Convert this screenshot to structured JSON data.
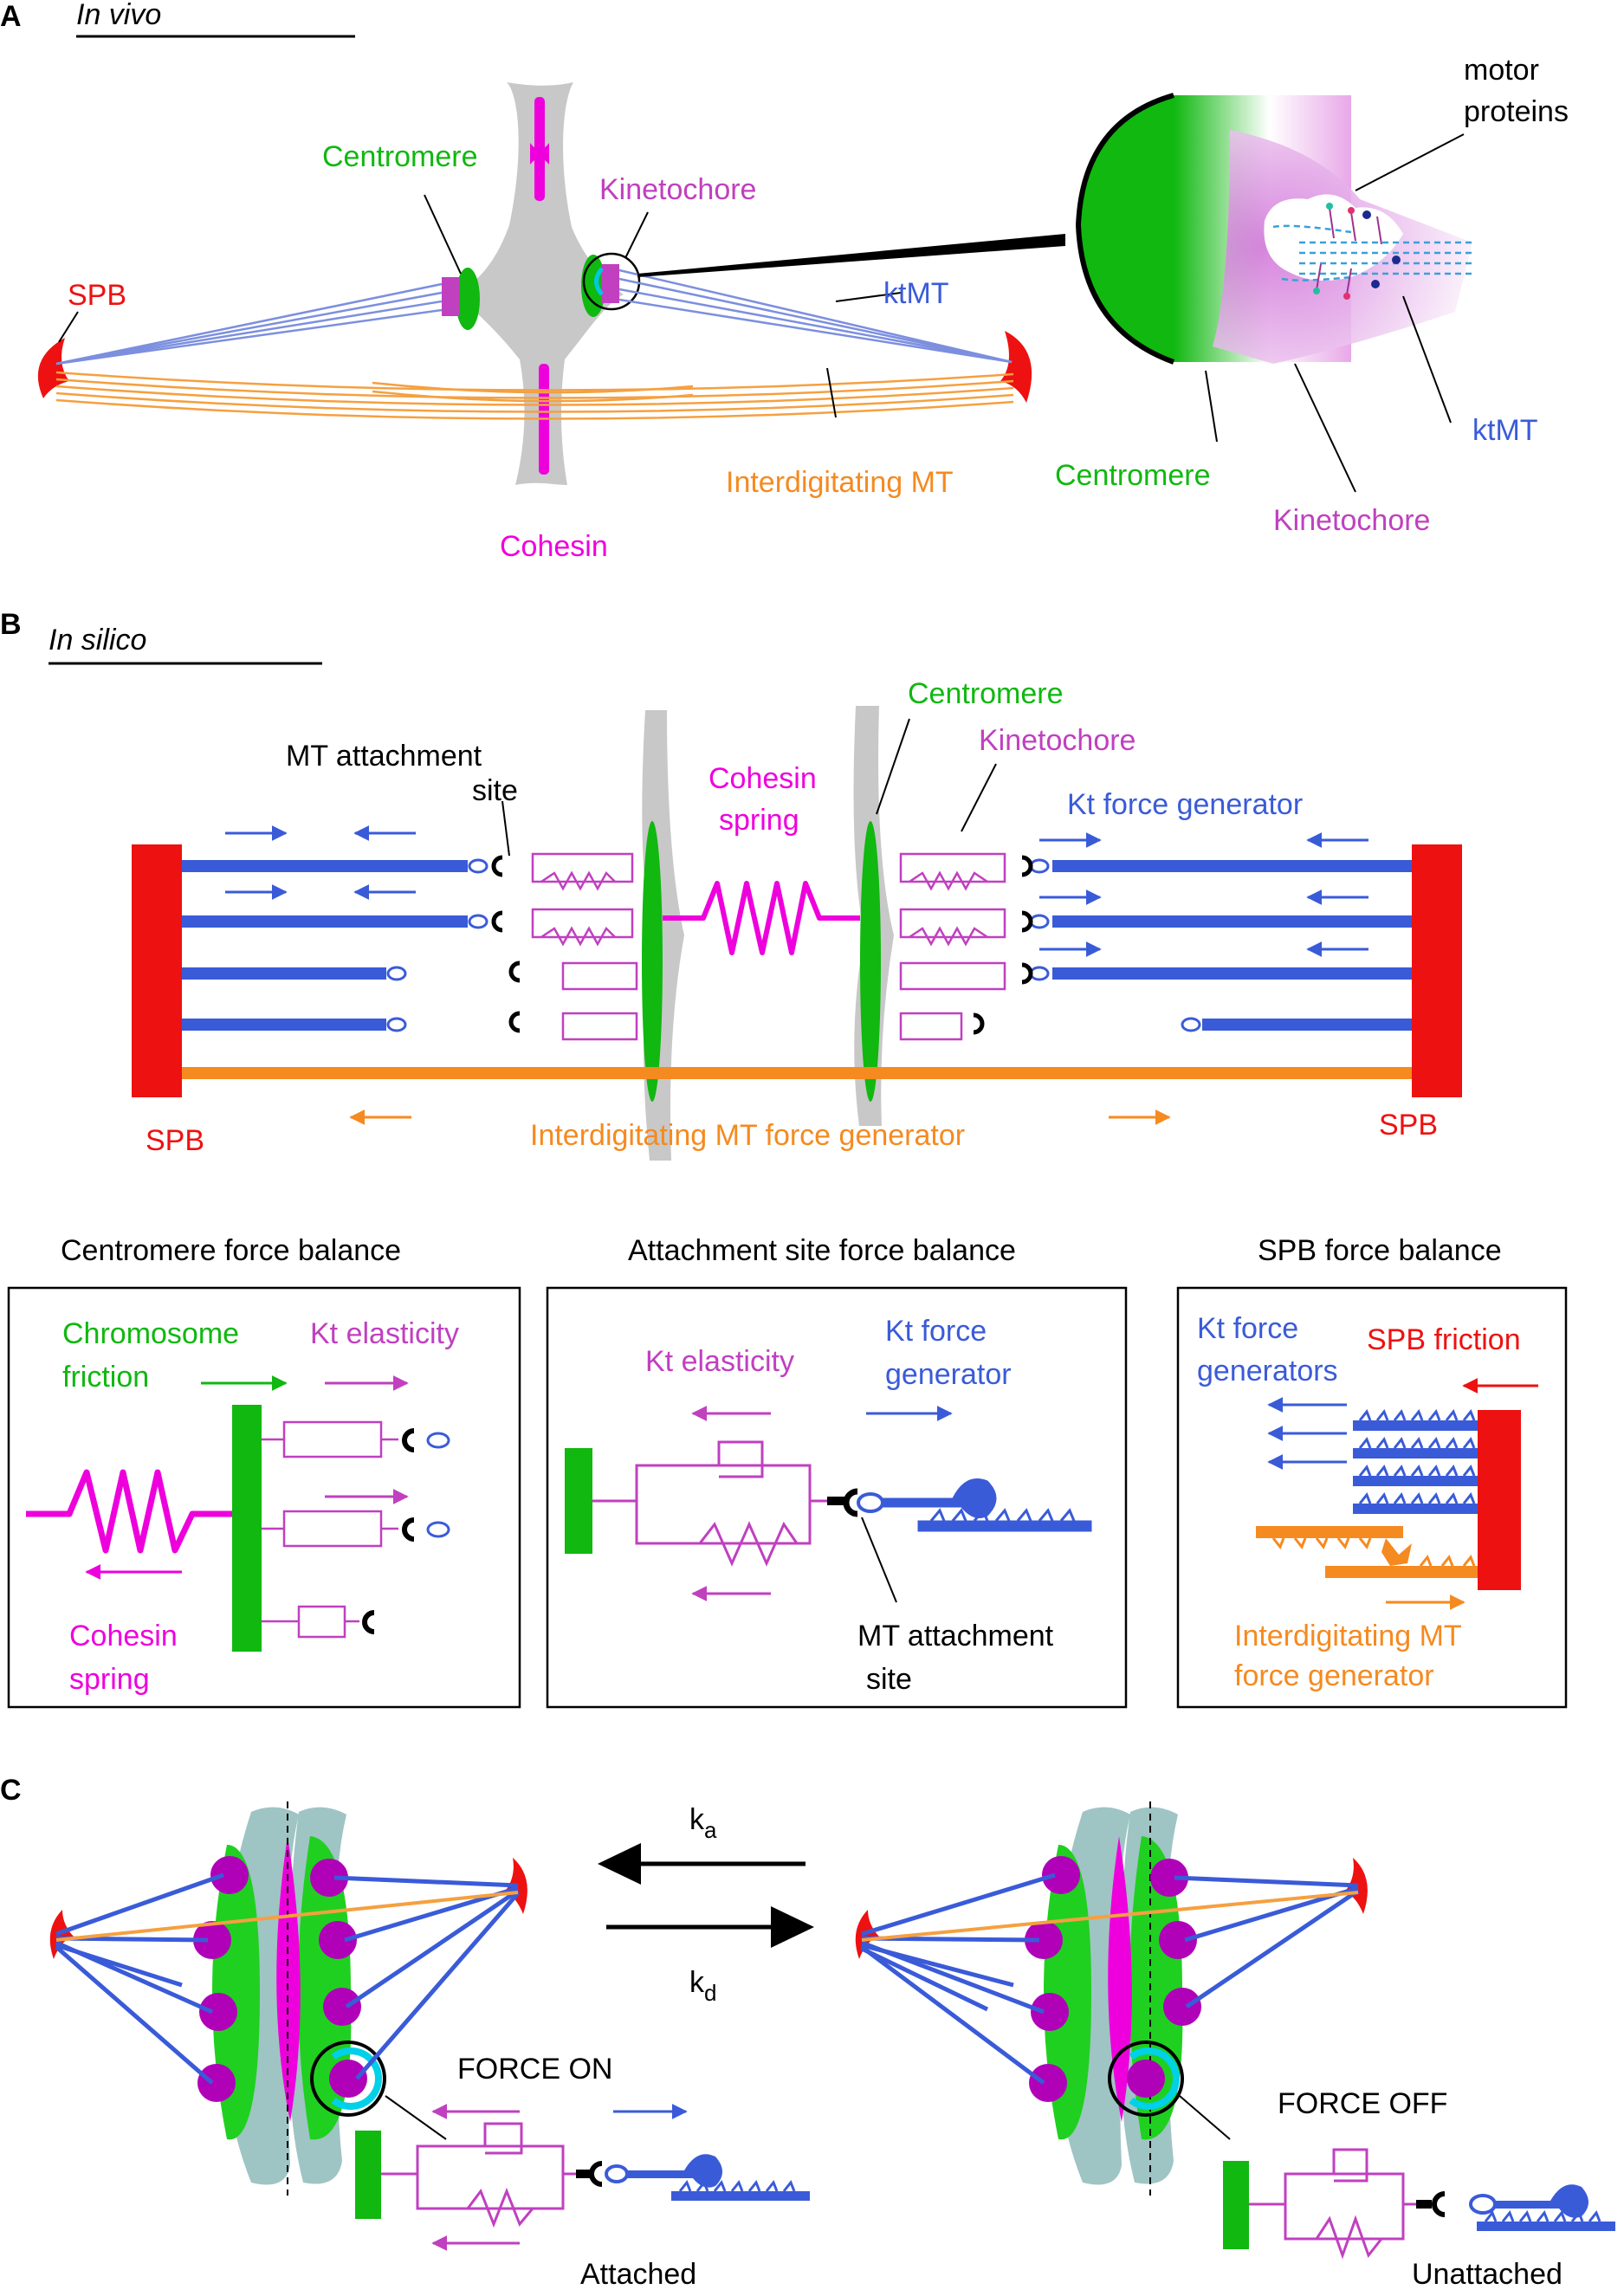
{
  "panels": {
    "a": {
      "letter": "A",
      "title": "In vivo",
      "labels": {
        "spb": "SPB",
        "centromere": "Centromere",
        "kinetochore": "Kinetochore",
        "ktmt": "ktMT",
        "interdigitating_mt": "Interdigitating MT",
        "cohesin": "Cohesin",
        "motor_proteins_1": "motor",
        "motor_proteins_2": "proteins",
        "zoom_ktmt": "ktMT",
        "zoom_centromere": "Centromere",
        "zoom_kinetochore": "Kinetochore"
      }
    },
    "b": {
      "letter": "B",
      "title": "In silico",
      "labels": {
        "mt_attachment_site_1": "MT attachment",
        "mt_attachment_site_2": "site",
        "cohesin_spring_1": "Cohesin",
        "cohesin_spring_2": "spring",
        "centromere": "Centromere",
        "kinetochore": "Kinetochore",
        "kt_force_generator": "Kt force generator",
        "spb_left": "SPB",
        "spb_right": "SPB",
        "interdigitating_force_generator": "Interdigitating MT force generator"
      },
      "boxes": {
        "centromere": {
          "title": "Centromere force balance",
          "chromosome_friction_1": "Chromosome",
          "chromosome_friction_2": "friction",
          "kt_elasticity": "Kt elasticity",
          "cohesin_spring_1": "Cohesin",
          "cohesin_spring_2": "spring"
        },
        "attachment": {
          "title": "Attachment site force balance",
          "kt_elasticity": "Kt elasticity",
          "kt_force_generator_1": "Kt force",
          "kt_force_generator_2": "generator",
          "mt_attachment_site_1": "MT attachment",
          "mt_attachment_site_2": "site"
        },
        "spb": {
          "title": "SPB force balance",
          "kt_force_generators_1": "Kt force",
          "kt_force_generators_2": "generators",
          "spb_friction": "SPB friction",
          "interdigitating_1": "Interdigitating MT",
          "interdigitating_2": "force generator"
        }
      }
    },
    "c": {
      "letter": "C",
      "ka": "k",
      "ka_sub": "a",
      "kd": "k",
      "kd_sub": "d",
      "force_on": "FORCE ON",
      "force_off": "FORCE OFF",
      "attached": "Attached",
      "unattached": "Unattached"
    }
  },
  "colors": {
    "spb_red": "#ee1111",
    "centromere_green": "#10b810",
    "kinetochore_magenta": "#c040c0",
    "cohesin_magenta": "#ee00dd",
    "ktmt_blue": "#3a5bd8",
    "interdigitating_orange": "#f58a20",
    "chromosome_gray": "#c8c8c8",
    "chromosome_teal": "#9fc4c4",
    "kinetochore_purple": "#b000b8"
  }
}
